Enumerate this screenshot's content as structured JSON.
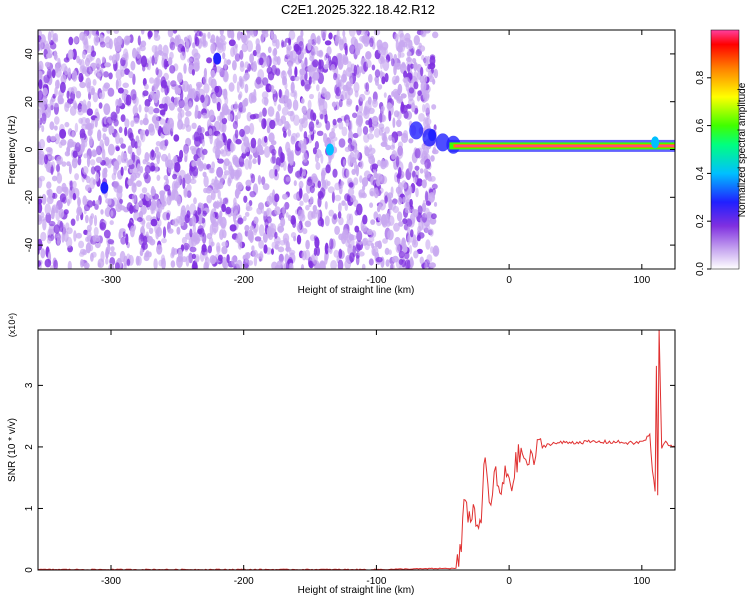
{
  "title": "C2E1.2025.322.18.42.R12",
  "chart_data": [
    {
      "type": "heatmap",
      "title": "",
      "xlabel": "Height of straight line (km)",
      "ylabel": "Frequency (Hz)",
      "xlim": [
        -355,
        125
      ],
      "ylim": [
        -50,
        50
      ],
      "x_ticks": [
        -300,
        -200,
        -100,
        0,
        100
      ],
      "y_ticks": [
        -40,
        -20,
        0,
        20,
        40
      ],
      "grid": false,
      "colorbar": {
        "label": "Normalized spectral amplitude",
        "range": [
          0,
          1
        ],
        "ticks": [
          "0.0",
          "0.2",
          "0.4",
          "0.6",
          "0.8"
        ],
        "tick_values": [
          0,
          0.2,
          0.4,
          0.6,
          0.8
        ],
        "colors": [
          "#ffffff",
          "#c8a8f0",
          "#8030e0",
          "#2020ff",
          "#00c0ff",
          "#00ff80",
          "#40ff00",
          "#ffff00",
          "#ff8000",
          "#ff0000",
          "#ff40a0"
        ]
      },
      "noise_region_x": [
        -355,
        -55
      ],
      "carrier": {
        "frequency_hz": 1.5,
        "x_start": -45,
        "x_end": 125,
        "amplitude": 0.95
      },
      "transition_ridge": [
        {
          "x": -70,
          "y": 8
        },
        {
          "x": -60,
          "y": 5
        },
        {
          "x": -50,
          "y": 3
        },
        {
          "x": -42,
          "y": 2
        }
      ],
      "bright_spots": [
        {
          "x": -305,
          "y": -16,
          "amplitude": 0.3
        },
        {
          "x": -220,
          "y": 38,
          "amplitude": 0.3
        },
        {
          "x": -135,
          "y": 0,
          "amplitude": 0.35
        },
        {
          "x": -58,
          "y": 6,
          "amplitude": 0.3
        },
        {
          "x": 110,
          "y": 3,
          "amplitude": 0.4
        }
      ]
    },
    {
      "type": "line",
      "title": "",
      "xlabel": "Height of straight line (km)",
      "ylabel": "SNR (10 * v/v)",
      "y_multiplier": "(x10⁴)",
      "xlim": [
        -355,
        125
      ],
      "ylim": [
        0,
        3.9
      ],
      "x_ticks": [
        -300,
        -200,
        -100,
        0,
        100
      ],
      "y_ticks": [
        0,
        1,
        2,
        3
      ],
      "grid": false,
      "series": [
        {
          "color": "#e03030",
          "points": [
            [
              -355,
              0.0
            ],
            [
              -100,
              0.0
            ],
            [
              -40,
              0.02
            ],
            [
              -36,
              0.3
            ],
            [
              -33,
              1.3
            ],
            [
              -30,
              0.8
            ],
            [
              -26,
              1.0
            ],
            [
              -22,
              0.6
            ],
            [
              -18,
              1.8
            ],
            [
              -15,
              1.1
            ],
            [
              -10,
              1.5
            ],
            [
              -6,
              1.2
            ],
            [
              -2,
              1.6
            ],
            [
              2,
              1.4
            ],
            [
              6,
              1.8
            ],
            [
              10,
              1.9
            ],
            [
              15,
              1.7
            ],
            [
              20,
              1.9
            ],
            [
              25,
              2.0
            ],
            [
              30,
              2.05
            ],
            [
              40,
              2.07
            ],
            [
              60,
              2.08
            ],
            [
              80,
              2.08
            ],
            [
              95,
              2.06
            ],
            [
              102,
              2.1
            ],
            [
              106,
              2.2
            ],
            [
              108,
              1.6
            ],
            [
              110,
              1.3
            ],
            [
              111,
              3.3
            ],
            [
              112,
              1.2
            ],
            [
              113,
              3.9
            ],
            [
              115,
              2.0
            ],
            [
              118,
              2.1
            ],
            [
              122,
              2.0
            ],
            [
              125,
              2.0
            ]
          ]
        }
      ]
    }
  ]
}
